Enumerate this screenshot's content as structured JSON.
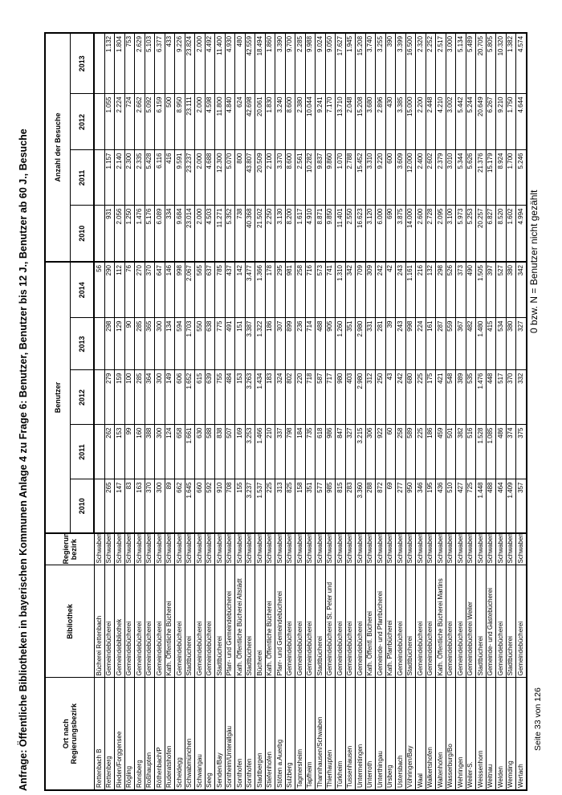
{
  "title": "Anfrage: Öffentliche Bibliotheken in bayerischen Kommunen  Anlage 4 zu Frage 6: Benutzer, Benutzer bis 12 J., Benutzer ab 60 J., Besuche",
  "table": {
    "headers": {
      "ort_line1": "Ort nach",
      "ort_line2": "Regierungsbezirk",
      "bibliothek": "Bibliothek",
      "bezirk_line1": "Regierungs-",
      "bezirk_line2": "bezirk",
      "benutzer_group": "Benutzer",
      "besuche_group": "Anzahl der Besuche",
      "benutzer_years": [
        "2010",
        "2011",
        "2012",
        "2013",
        "2014"
      ],
      "besuche_years": [
        "2010",
        "2011",
        "2012",
        "2013"
      ]
    },
    "rows": [
      {
        "ort": "Rettenbach B",
        "bibliothek": "Bücherei Rettenbach",
        "bezirk": "Schwaben",
        "ben": [
          "",
          "",
          "",
          "",
          "56"
        ],
        "bes": [
          "",
          "",
          "",
          ""
        ]
      },
      {
        "ort": "Rettenberg",
        "bibliothek": "Gemeindebücherei",
        "bezirk": "Schwaben",
        "ben": [
          "265",
          "262",
          "279",
          "298",
          "290"
        ],
        "bes": [
          "931",
          "1.157",
          "1.055",
          "1.132"
        ]
      },
      {
        "ort": "Rieden/Forggensee",
        "bibliothek": "Gemeindebibliothek",
        "bezirk": "Schwaben",
        "ben": [
          "147",
          "153",
          "159",
          "129",
          "112"
        ],
        "bes": [
          "2.056",
          "2.140",
          "2.224",
          "1.804"
        ]
      },
      {
        "ort": "Rögling",
        "bibliothek": "Gemeindebücherei",
        "bezirk": "Schwaben",
        "ben": [
          "83",
          "99",
          "100",
          "90",
          "76"
        ],
        "bes": [
          "1.250",
          "2.300",
          "724",
          "753"
        ]
      },
      {
        "ort": "Ronsberg",
        "bibliothek": "Gemeindebücherei",
        "bezirk": "Schwaben",
        "ben": [
          "163",
          "160",
          "285",
          "285",
          "270"
        ],
        "bes": [
          "1.476",
          "2.335",
          "2.662",
          "2.629"
        ]
      },
      {
        "ort": "Roßhaupten",
        "bibliothek": "Gemeindebücherei",
        "bezirk": "Schwaben",
        "ben": [
          "370",
          "388",
          "364",
          "365",
          "370"
        ],
        "bes": [
          "5.176",
          "5.428",
          "5.092",
          "5.103"
        ]
      },
      {
        "ort": "Röthenbach/P",
        "bibliothek": "Gemeindebücherei",
        "bezirk": "Schwaben",
        "ben": [
          "300",
          "300",
          "300",
          "300",
          "647"
        ],
        "bes": [
          "6.089",
          "6.116",
          "6.159",
          "6.377"
        ]
      },
      {
        "ort": "Ruderatshofen",
        "bibliothek": "Kath. Öffentliche Bücherei",
        "bezirk": "Schwaben",
        "ben": [
          "89",
          "124",
          "149",
          "134",
          "146"
        ],
        "bes": [
          "334",
          "416",
          "500",
          "433"
        ]
      },
      {
        "ort": "Scheidegg",
        "bibliothek": "Gemeindebücherei",
        "bezirk": "Schwaben",
        "ben": [
          "662",
          "658",
          "606",
          "594",
          "998"
        ],
        "bes": [
          "9.684",
          "9.591",
          "8.950",
          "9.226"
        ]
      },
      {
        "ort": "Schwabmünchen",
        "bibliothek": "Stadtbücherei",
        "bezirk": "Schwaben",
        "ben": [
          "1.645",
          "1.661",
          "1.652",
          "1.703",
          "2.067"
        ],
        "bes": [
          "23.014",
          "23.237",
          "23.111",
          "23.824"
        ]
      },
      {
        "ort": "Schwangau",
        "bibliothek": "Gemeindebücherei",
        "bezirk": "Schwaben",
        "ben": [
          "660",
          "630",
          "615",
          "550",
          "565"
        ],
        "bes": [
          "2.000",
          "2.000",
          "2.000",
          "2.000"
        ]
      },
      {
        "ort": "Seeg",
        "bibliothek": "Gemeindebücherei",
        "bezirk": "Schwaben",
        "ben": [
          "592",
          "588",
          "639",
          "638",
          "637"
        ],
        "bes": [
          "4.503",
          "4.688",
          "4.598",
          "4.492"
        ]
      },
      {
        "ort": "Senden/Bay",
        "bibliothek": "Stadtbücherei",
        "bezirk": "Schwaben",
        "ben": [
          "910",
          "838",
          "755",
          "775",
          "785"
        ],
        "bes": [
          "11.271",
          "12.300",
          "11.800",
          "11.400"
        ]
      },
      {
        "ort": "Sontheim/Unterallgäu",
        "bibliothek": "Pfarr- und Gemeindebücherei",
        "bezirk": "Schwaben",
        "ben": [
          "708",
          "507",
          "484",
          "491",
          "437"
        ],
        "bes": [
          "5.352",
          "5.070",
          "4.840",
          "4.930"
        ]
      },
      {
        "ort": "Sonthofen",
        "bibliothek": "Kath. Öffentliche Bücherei Altstädt",
        "bezirk": "Schwaben",
        "ben": [
          "155",
          "169",
          "153",
          "151",
          "142"
        ],
        "bes": [
          "738",
          "800",
          "624",
          "480"
        ]
      },
      {
        "ort": "Sonthofen",
        "bibliothek": "Stadtbücherei",
        "bezirk": "Schwaben",
        "ben": [
          "3.237",
          "3.253",
          "3.263",
          "3.387",
          "3.477"
        ],
        "bes": [
          "40.368",
          "43.807",
          "42.698",
          "42.559"
        ]
      },
      {
        "ort": "Stadtbergen",
        "bibliothek": "Bücherei",
        "bezirk": "Schwaben",
        "ben": [
          "1.537",
          "1.466",
          "1.434",
          "1.322",
          "1.366"
        ],
        "bes": [
          "21.502",
          "20.509",
          "20.061",
          "18.494"
        ]
      },
      {
        "ort": "Stiefenhofen",
        "bibliothek": "Kath. Öffentliche Bücherei",
        "bezirk": "Schwaben",
        "ben": [
          "225",
          "210",
          "183",
          "186",
          "178"
        ],
        "bes": [
          "2.250",
          "2.100",
          "1.830",
          "1.860"
        ]
      },
      {
        "ort": "Stötten a.Auerbg",
        "bibliothek": "Pfarr- und Gemeindebücherei",
        "bezirk": "Schwaben",
        "ben": [
          "313",
          "337",
          "324",
          "307",
          "295"
        ],
        "bes": [
          "3.130",
          "3.370",
          "3.240",
          "3.390"
        ]
      },
      {
        "ort": "Sulzberg",
        "bibliothek": "Gemeindebücherei",
        "bezirk": "Schwaben",
        "ben": [
          "825",
          "798",
          "802",
          "899",
          "981"
        ],
        "bes": [
          "8.200",
          "8.600",
          "8.600",
          "9.700"
        ]
      },
      {
        "ort": "Tagmersheim",
        "bibliothek": "Gemeindebücherei",
        "bezirk": "Schwaben",
        "ben": [
          "158",
          "184",
          "220",
          "236",
          "258"
        ],
        "bes": [
          "1.617",
          "2.561",
          "2.380",
          "2.285"
        ]
      },
      {
        "ort": "Tapfheim",
        "bibliothek": "Gemeindebücherei",
        "bezirk": "Schwaben",
        "ben": [
          "351",
          "735",
          "718",
          "714",
          "716"
        ],
        "bes": [
          "4.910",
          "10.282",
          "10.044",
          "9.988"
        ]
      },
      {
        "ort": "Thannhausen/Schwaben",
        "bibliothek": "Stadtbücherei",
        "bezirk": "Schwaben",
        "ben": [
          "577",
          "618",
          "587",
          "488",
          "573"
        ],
        "bes": [
          "8.871",
          "9.837",
          "9.241",
          "9.024"
        ]
      },
      {
        "ort": "Thierhaupten",
        "bibliothek": "Gemeindebücherei St. Peter und",
        "bezirk": "Schwaben",
        "ben": [
          "985",
          "986",
          "717",
          "905",
          "741"
        ],
        "bes": [
          "9.850",
          "9.860",
          "7.170",
          "9.050"
        ]
      },
      {
        "ort": "Türkheim",
        "bibliothek": "Gemeindebücherei",
        "bezirk": "Schwaben",
        "ben": [
          "815",
          "847",
          "980",
          "1.260",
          "1.310"
        ],
        "bes": [
          "11.401",
          "1.070",
          "13.710",
          "17.627"
        ]
      },
      {
        "ort": "Tussenhausen",
        "bibliothek": "Gemeindebücherei",
        "bezirk": "Schwaben",
        "ben": [
          "283",
          "327",
          "403",
          "351",
          "342"
        ],
        "bes": [
          "2.550",
          "2.788",
          "2.048",
          "1.945"
        ]
      },
      {
        "ort": "Untermeitingen",
        "bibliothek": "Gemeindebücherei",
        "bezirk": "Schwaben",
        "ben": [
          "3.360",
          "3.215",
          "2.980",
          "2.980",
          "709"
        ],
        "bes": [
          "16.623",
          "15.452",
          "15.208",
          "15.208"
        ]
      },
      {
        "ort": "Unterroth",
        "bibliothek": "Kath. Öffentl. Bücherei",
        "bezirk": "Schwaben",
        "ben": [
          "288",
          "306",
          "312",
          "331",
          "309"
        ],
        "bes": [
          "3.120",
          "3.310",
          "3.680",
          "3.740"
        ]
      },
      {
        "ort": "Unterthingau",
        "bibliothek": "Gemeinde- und Pfarrbücherei",
        "bezirk": "Schwaben",
        "ben": [
          "872",
          "922",
          "250",
          "281",
          "242"
        ],
        "bes": [
          "6.000",
          "9.220",
          "2.896",
          "3.255"
        ]
      },
      {
        "ort": "Ursberg",
        "bibliothek": "Kath. Pfarrbücherei",
        "bezirk": "Schwaben",
        "ben": [
          "69",
          "60",
          "43",
          "39",
          "42"
        ],
        "bes": [
          "690",
          "600",
          "430",
          "390"
        ]
      },
      {
        "ort": "Ustersbach",
        "bibliothek": "Gemeindebücherei",
        "bezirk": "Schwaben",
        "ben": [
          "277",
          "258",
          "242",
          "243",
          "243"
        ],
        "bes": [
          "3.875",
          "3.609",
          "3.385",
          "3.399"
        ]
      },
      {
        "ort": "Vöhringen/Bay",
        "bibliothek": "Stadtbücherei",
        "bezirk": "Schwaben",
        "ben": [
          "950",
          "589",
          "680",
          "998",
          "1.161"
        ],
        "bes": [
          "14.000",
          "12.000",
          "15.000",
          "16.500"
        ]
      },
      {
        "ort": "Waal",
        "bibliothek": "Gemeindebücherei",
        "bezirk": "Schwaben",
        "ben": [
          "346",
          "225",
          "225",
          "224",
          "216"
        ],
        "bes": [
          "2.600",
          "2.400",
          "2.200",
          "2.320"
        ]
      },
      {
        "ort": "Walkertshofen",
        "bibliothek": "Gemeindebücherei",
        "bezirk": "Schwaben",
        "ben": [
          "195",
          "186",
          "175",
          "161",
          "132"
        ],
        "bes": [
          "2.728",
          "2.602",
          "2.448",
          "2.252"
        ]
      },
      {
        "ort": "Waltenhofen",
        "bibliothek": "Kath. Öffentliche Bücherei Martins",
        "bezirk": "Schwaben",
        "ben": [
          "436",
          "459",
          "421",
          "287",
          "298"
        ],
        "bes": [
          "2.095",
          "2.379",
          "4.210",
          "2.517"
        ]
      },
      {
        "ort": "Wasserburg/Bo",
        "bibliothek": "Gemeindebücherei",
        "bezirk": "Schwaben",
        "ben": [
          "510",
          "501",
          "548",
          "559",
          "526"
        ],
        "bes": [
          "3.100",
          "3.010",
          "3.002",
          "3.000"
        ]
      },
      {
        "ort": "Wehringen",
        "bibliothek": "Gemeindebücherei",
        "bezirk": "Schwaben",
        "ben": [
          "427",
          "382",
          "389",
          "367",
          "373"
        ],
        "bes": [
          "5.973",
          "5.344",
          "5.442",
          "5.134"
        ]
      },
      {
        "ort": "Weiler-S.",
        "bibliothek": "Gemeindebücherei Weiler",
        "bezirk": "Schwaben",
        "ben": [
          "725",
          "516",
          "535",
          "482",
          "490"
        ],
        "bes": [
          "5.253",
          "5.626",
          "5.244",
          "5.489"
        ]
      },
      {
        "ort": "Weissenhorn",
        "bibliothek": "Stadtbücherei",
        "bezirk": "Schwaben",
        "ben": [
          "1.448",
          "1.528",
          "1.476",
          "1.480",
          "1.505"
        ],
        "bes": [
          "20.257",
          "21.376",
          "20.649",
          "20.705"
        ]
      },
      {
        "ort": "Weitnau",
        "bibliothek": "Gemeinde- und Gästebücherei",
        "bezirk": "Schwaben",
        "ben": [
          "488",
          "1.085",
          "448",
          "415",
          "397"
        ],
        "bes": [
          "6.827",
          "15.179",
          "6.267",
          "5.805"
        ]
      },
      {
        "ort": "Welden",
        "bibliothek": "Gemeindebücherei",
        "bezirk": "Schwaben",
        "ben": [
          "464",
          "486",
          "517",
          "534",
          "527"
        ],
        "bes": [
          "8.520",
          "8.924",
          "9.210",
          "10.320"
        ]
      },
      {
        "ort": "Wemding",
        "bibliothek": "Stadtbücherei",
        "bezirk": "Schwaben",
        "ben": [
          "1.409",
          "374",
          "370",
          "380",
          "380"
        ],
        "bes": [
          "1.602",
          "1.700",
          "1.750",
          "1.382"
        ]
      },
      {
        "ort": "Wertach",
        "bibliothek": "Gemeindebücherei",
        "bezirk": "Schwaben",
        "ben": [
          "357",
          "375",
          "332",
          "327",
          "342"
        ],
        "bes": [
          "4.994",
          "5.246",
          "4.644",
          "4.574"
        ]
      }
    ]
  },
  "footer": {
    "page": "Seite 33 von 126",
    "note": "0 bzw. N = Benutzer nicht gezählt"
  }
}
